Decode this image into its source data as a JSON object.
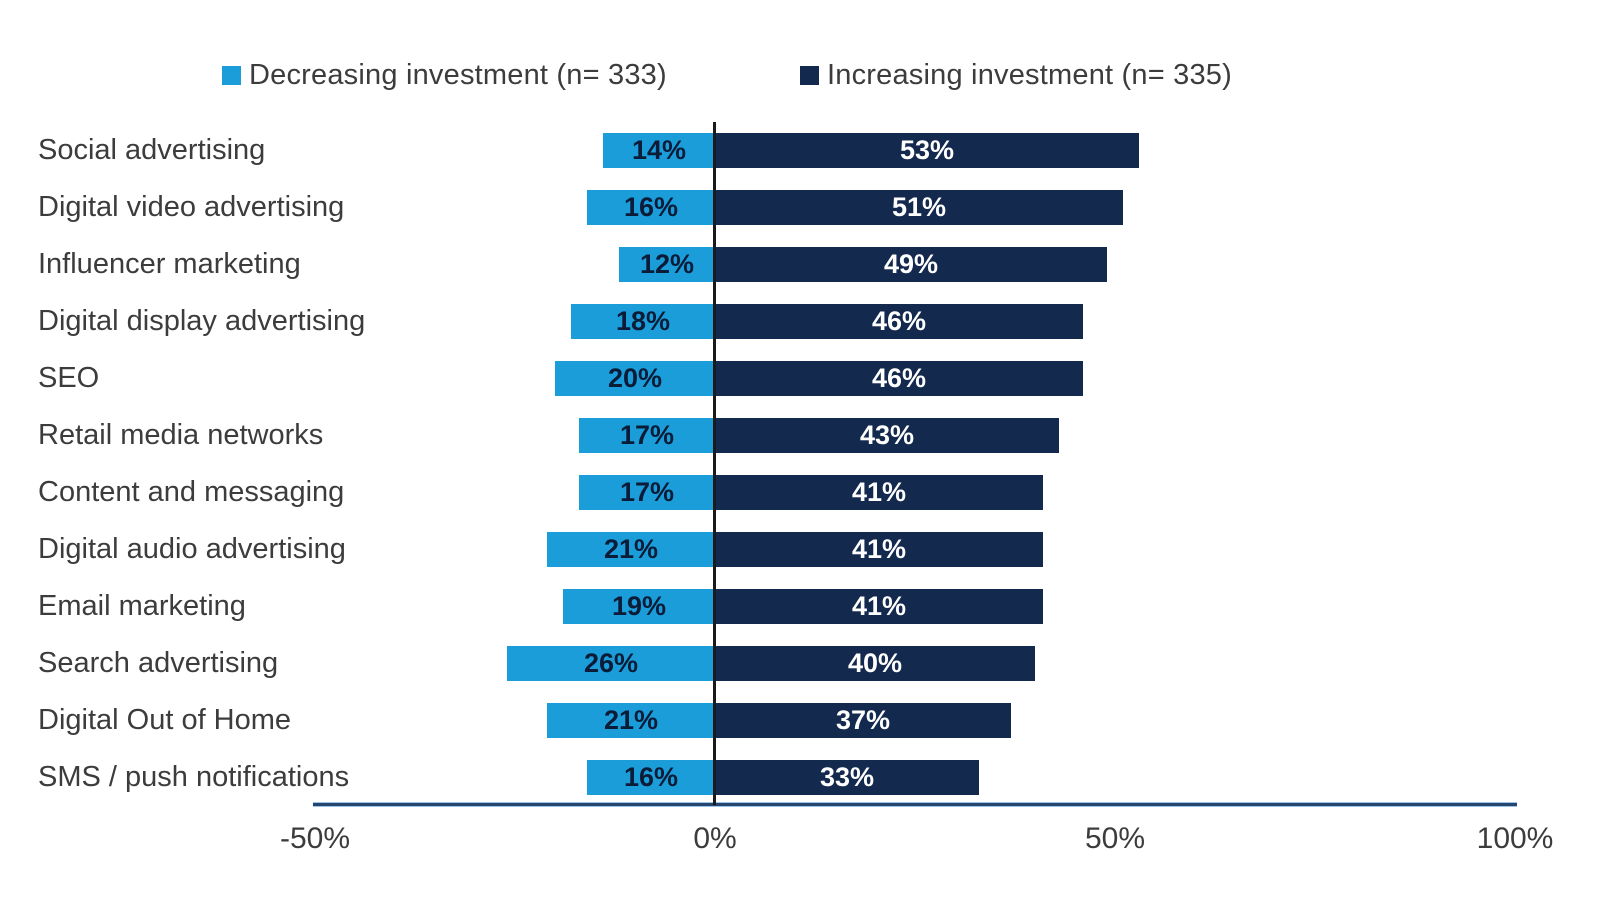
{
  "chart_data": {
    "type": "bar",
    "variant": "diverging-horizontal",
    "title": "",
    "categories": [
      "Social advertising",
      "Digital video advertising",
      "Influencer marketing",
      "Digital display advertising",
      "SEO",
      "Retail media networks",
      "Content and messaging",
      "Digital audio advertising",
      "Email marketing",
      "Search advertising",
      "Digital Out of Home",
      "SMS / push notifications"
    ],
    "series": [
      {
        "name": "Decreasing investment (n= 333)",
        "direction": "negative",
        "color": "#1b9dd9",
        "value_label_color": "#0a1c38",
        "values": [
          14,
          16,
          12,
          18,
          20,
          17,
          17,
          21,
          19,
          26,
          21,
          16
        ]
      },
      {
        "name": "Increasing investment (n= 335)",
        "direction": "positive",
        "color": "#13294e",
        "value_label_color": "#ffffff",
        "values": [
          53,
          51,
          49,
          46,
          46,
          43,
          41,
          41,
          41,
          40,
          37,
          33
        ]
      }
    ],
    "value_suffix": "%",
    "x_axis": {
      "ticks": [
        "-50%",
        "0%",
        "50%",
        "100%"
      ],
      "tick_values": [
        -50,
        0,
        50,
        100
      ],
      "range": [
        -50,
        100
      ],
      "grid": false
    },
    "legend_position": "top",
    "zero_line_color": "#1a1a1a",
    "axis_line_color": "#24466e"
  }
}
